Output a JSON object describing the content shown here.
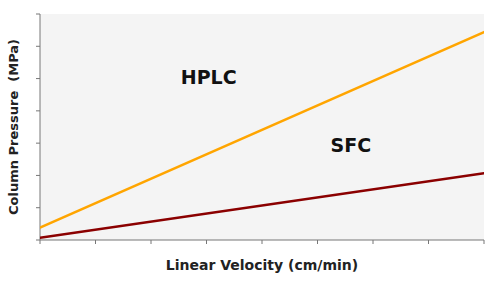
{
  "chart_data": {
    "type": "line",
    "xlabel": "Linear Velocity (cm/min)",
    "ylabel": "Column Pressure  (MPa)",
    "x": [
      0,
      1
    ],
    "series": [
      {
        "color": "#FFA500",
        "values": [
          0.055,
          0.92
        ]
      },
      {
        "color": "#8B0000",
        "values": [
          0.01,
          0.295
        ]
      }
    ],
    "annotations": [
      "HPLC",
      "SFC"
    ],
    "xlim": [
      0,
      1
    ],
    "ylim": [
      0,
      1.0
    ],
    "xticks": [
      0,
      0.125,
      0.25,
      0.375,
      0.5,
      0.625,
      0.75,
      0.875,
      1
    ],
    "yticks": [
      0,
      0.14285714285714285,
      0.2857142857142857,
      0.42857142857142855,
      0.5714285714285714,
      0.7142857142857143,
      0.8571428571428571,
      1
    ],
    "tick_labels": false,
    "grid": false
  }
}
